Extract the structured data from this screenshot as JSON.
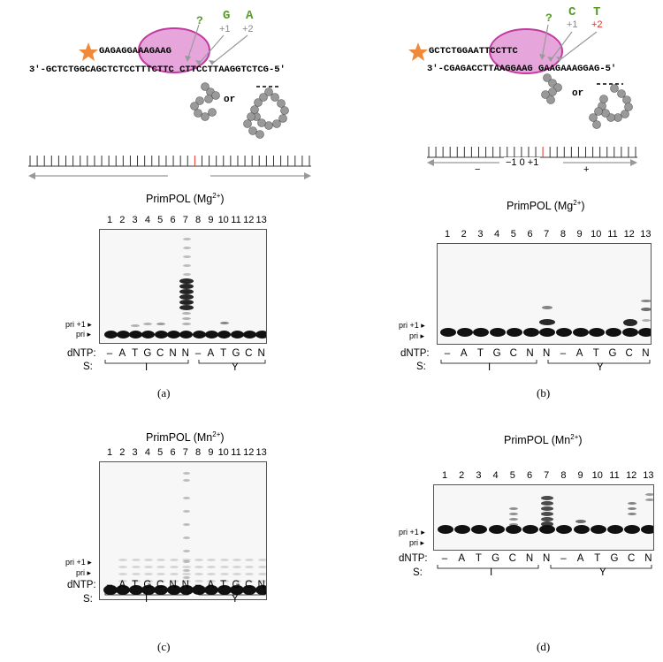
{
  "diagram_a": {
    "primer_seq": "GAGAGGAAAGAAG",
    "template_seq": "3′-GCTCTGGCAGCTCTCCTTTCTTC CTTCCTTAAGGTCTCG-5′",
    "pos_question": "?",
    "nuc_plus1": "G",
    "nuc_plus2": "A",
    "pos_plus1": "+1",
    "pos_plus2": "+2",
    "or_text": "or"
  },
  "diagram_b": {
    "primer_seq": "GCTCTGGAATTCCTTC",
    "template_seq": "3′-CGAGACCTTAAGGAAG GAAGAAAGGAG-5′",
    "pos_question": "?",
    "nuc_plus1": "C",
    "nuc_plus2": "T",
    "pos_plus1": "+1",
    "pos_plus2": "+2",
    "or_text": "or",
    "scale_minus": "−",
    "scale_center": "−1 0 +1",
    "scale_plus": "+"
  },
  "panels": {
    "a": {
      "enzyme": "PrimPOL (Mg",
      "ion": "2+",
      "close": ")",
      "label": "(a)"
    },
    "b": {
      "enzyme": "PrimPOL (Mg",
      "ion": "2+",
      "close": ")",
      "label": "(b)"
    },
    "c": {
      "enzyme": "PrimPOL (Mn",
      "ion": "2+",
      "close": ")",
      "label": "(c)"
    },
    "d": {
      "enzyme": "PrimPOL (Mn",
      "ion": "2+",
      "close": ")",
      "label": "(d)"
    }
  },
  "lanes": [
    "1",
    "2",
    "3",
    "4",
    "5",
    "6",
    "7",
    "8",
    "9",
    "10",
    "11",
    "12",
    "13"
  ],
  "row_labels": {
    "dntp": "dNTP:",
    "s": "S:",
    "pri_plus1": "pri +1",
    "pri": "pri"
  },
  "dntp_ac": [
    "–",
    "A",
    "T",
    "G",
    "C",
    "N",
    "N",
    "–",
    "A",
    "T",
    "G",
    "C",
    "N"
  ],
  "dntp_bd": [
    "–",
    "A",
    "T",
    "G",
    "C",
    "N",
    "N",
    "–",
    "A",
    "T",
    "G",
    "C",
    "N"
  ],
  "s_labels": {
    "left": "I",
    "right": "Y"
  },
  "colors": {
    "bubble": "#e6a6dc",
    "bubble_border": "#c2399f",
    "star": "#f08a3a",
    "green": "#5a9a2a",
    "gray_text": "#888888",
    "red": "#e0302a"
  }
}
